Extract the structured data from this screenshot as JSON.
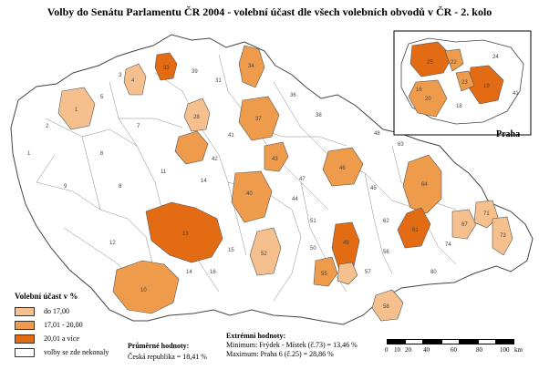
{
  "title": "Volby do Senátu Parlamentu ČR 2004 - volební účast dle všech volebních obvodů v ČR - 2. kolo",
  "legend": {
    "title": "Volební účast v %",
    "items": [
      {
        "label": "do 17,00",
        "color": "#f5c08d"
      },
      {
        "label": "17,01 - 20,00",
        "color": "#ef9b4c"
      },
      {
        "label": "20,01 a více",
        "color": "#e36b13"
      },
      {
        "label": "volby se zde nekonaly",
        "color": "#ffffff"
      }
    ]
  },
  "averages": {
    "heading": "Průměrné hodnoty:",
    "value": "Česká republika = 18,41 %"
  },
  "extremes": {
    "heading": "Extrémní hodnoty:",
    "minimum": "Minimum: Frýdek - Místek (č.73) = 13,46 %",
    "maximum": "Maximum: Praha 6 (č.25) = 28,86 %"
  },
  "scale": {
    "labels": [
      "0",
      "10",
      "20",
      "40",
      "60",
      "80",
      "100"
    ],
    "unit": "km"
  },
  "inset": {
    "label": "Praha"
  }
}
